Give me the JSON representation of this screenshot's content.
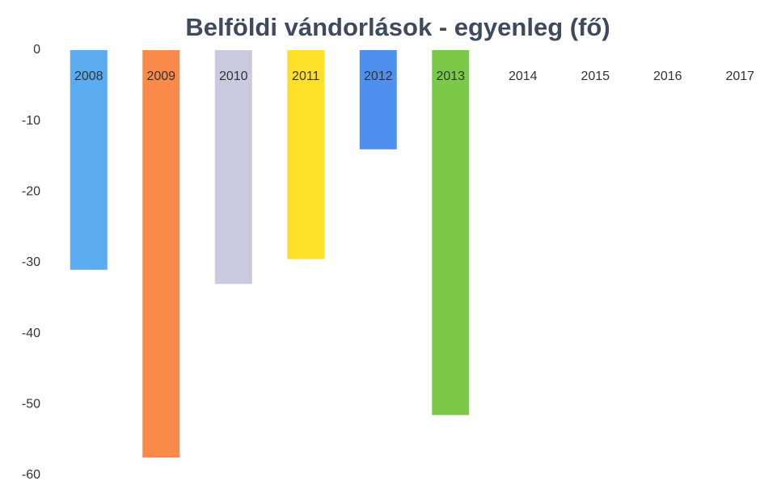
{
  "chart_data": {
    "type": "bar",
    "title": "Belföldi vándorlások - egyenleg (fő)",
    "categories": [
      "2008",
      "2009",
      "2010",
      "2011",
      "2012",
      "2013",
      "2014",
      "2015",
      "2016",
      "2017"
    ],
    "values": [
      -31,
      -57.5,
      -33,
      -29.5,
      -14,
      -51.5,
      null,
      null,
      null,
      null
    ],
    "colors": [
      "#5aabf0",
      "#f98a4a",
      "#c9c9e0",
      "#fde02a",
      "#4f8ff0",
      "#7cc94a",
      null,
      null,
      null,
      null
    ],
    "ylim": [
      -60,
      0
    ],
    "yticks": [
      0,
      -10,
      -20,
      -30,
      -40,
      -50,
      -60
    ],
    "grid": false
  }
}
